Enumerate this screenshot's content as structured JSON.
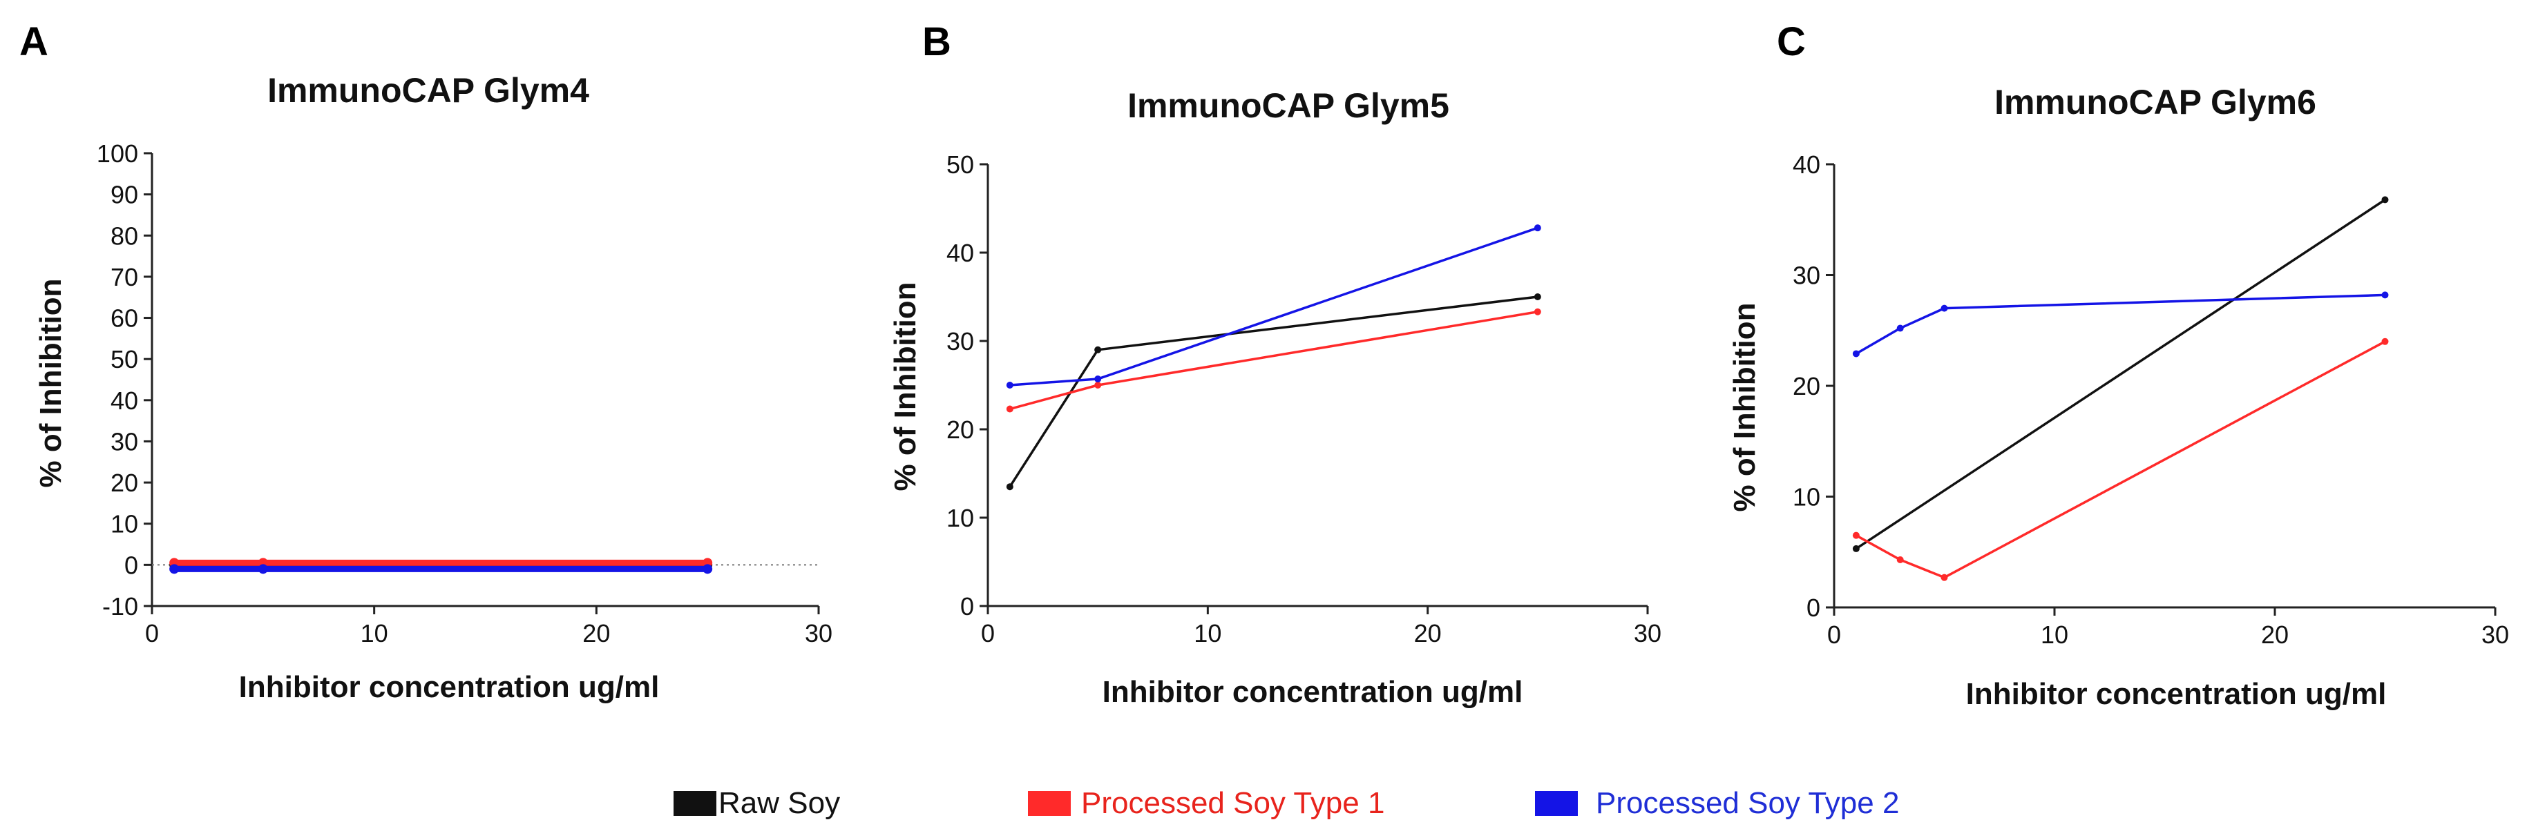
{
  "colors": {
    "Raw Soy": "#111111",
    "Processed Soy Type 1": "#ff2a2a",
    "Processed Soy Type 2": "#1414e6"
  },
  "legend": [
    {
      "label": "Raw Soy",
      "color": "#111111",
      "text_color": "#111111"
    },
    {
      "label": "Processed Soy Type 1",
      "color": "#ff2a2a",
      "text_color": "#e8231c"
    },
    {
      "label": "Processed Soy Type 2",
      "color": "#1414e6",
      "text_color": "#1f2ed6"
    }
  ],
  "chart_data": [
    {
      "panel": "A",
      "type": "line",
      "title": "ImmunoCAP Glym4",
      "xlabel": "Inhibitor concentration ug/ml",
      "ylabel": "% of Inhibition",
      "xlim": [
        0,
        30
      ],
      "ylim": [
        -10,
        100
      ],
      "xticks": [
        0,
        10,
        20,
        30
      ],
      "yticks": [
        -10,
        0,
        10,
        20,
        30,
        40,
        50,
        60,
        70,
        80,
        90,
        100
      ],
      "zero_line": true,
      "series": [
        {
          "name": "Raw Soy",
          "x": [
            1,
            5,
            25
          ],
          "y": [
            0,
            0,
            0
          ]
        },
        {
          "name": "Processed Soy Type 1",
          "x": [
            1,
            5,
            25
          ],
          "y": [
            0.5,
            0.5,
            0.5
          ]
        },
        {
          "name": "Processed Soy Type 2",
          "x": [
            1,
            5,
            25
          ],
          "y": [
            -1,
            -1,
            -1
          ]
        }
      ]
    },
    {
      "panel": "B",
      "type": "line",
      "title": "ImmunoCAP Glym5",
      "xlabel": "Inhibitor concentration ug/ml",
      "ylabel": "% of Inhibition",
      "xlim": [
        0,
        30
      ],
      "ylim": [
        0,
        50
      ],
      "xticks": [
        0,
        10,
        20,
        30
      ],
      "yticks": [
        0,
        10,
        20,
        30,
        40,
        50
      ],
      "zero_line": false,
      "series": [
        {
          "name": "Raw Soy",
          "x": [
            1,
            5,
            25
          ],
          "y": [
            13.5,
            29,
            35
          ]
        },
        {
          "name": "Processed Soy Type 1",
          "x": [
            1,
            5,
            25
          ],
          "y": [
            22.3,
            25,
            33.3
          ]
        },
        {
          "name": "Processed Soy Type 2",
          "x": [
            1,
            5,
            25
          ],
          "y": [
            25,
            25.7,
            42.8
          ]
        }
      ]
    },
    {
      "panel": "C",
      "type": "line",
      "title": "ImmunoCAP Glym6",
      "xlabel": "Inhibitor concentration ug/ml",
      "ylabel": "% of Inhibition",
      "xlim": [
        0,
        30
      ],
      "ylim": [
        0,
        40
      ],
      "xticks": [
        0,
        10,
        20,
        30
      ],
      "yticks": [
        0,
        10,
        20,
        30,
        40
      ],
      "zero_line": false,
      "series": [
        {
          "name": "Raw Soy",
          "x": [
            1,
            25
          ],
          "y": [
            5.3,
            36.8
          ]
        },
        {
          "name": "Processed Soy Type 1",
          "x": [
            1,
            3,
            5,
            25
          ],
          "y": [
            6.5,
            4.3,
            2.7,
            24
          ]
        },
        {
          "name": "Processed Soy Type 2",
          "x": [
            1,
            3,
            5,
            25
          ],
          "y": [
            22.9,
            25.2,
            27,
            28.2
          ]
        }
      ]
    }
  ]
}
